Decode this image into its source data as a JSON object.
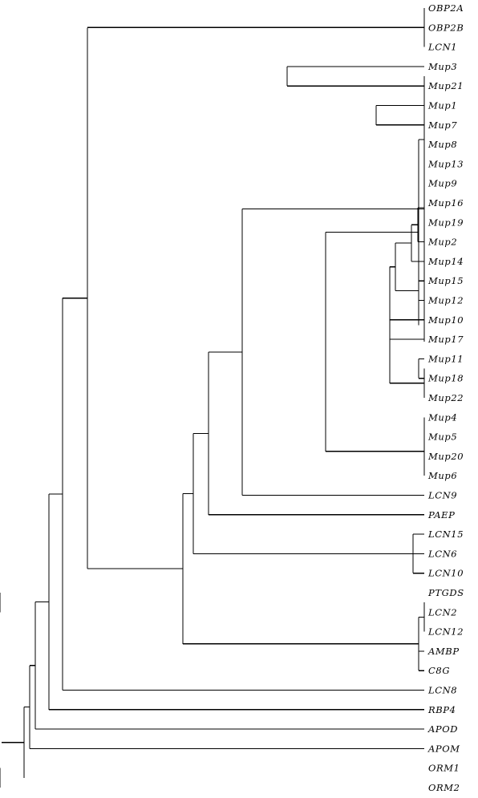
{
  "tree": {
    "name": "",
    "children": [
      {
        "name": "",
        "children": [
          {
            "name": "",
            "children": [
              {
                "name": "",
                "children": [
                  {
                    "name": "",
                    "children": [
                      {
                        "name": "",
                        "children": [
                          {
                            "name": "",
                            "children": [
                              {
                                "name": "OBP2A"
                              },
                              {
                                "name": "OBP2B"
                              },
                              {
                                "name": "LCN1"
                              }
                            ]
                          },
                          {
                            "name": "",
                            "children": [
                              {
                                "name": "",
                                "children": [
                                  {
                                    "name": "",
                                    "children": [
                                      {
                                        "name": "",
                                        "children": [
                                          {
                                            "name": "",
                                            "children": [
                                              {
                                                "name": "",
                                                "children": [
                                                  {
                                                    "name": "",
                                                    "children": [
                                                      {
                                                        "name": "Mup3"
                                                      },
                                                      {
                                                        "name": "Mup21"
                                                      }
                                                    ]
                                                  },
                                                  {
                                                    "name": "",
                                                    "children": [
                                                      {
                                                        "name": "",
                                                        "children": [
                                                          {
                                                            "name": "",
                                                            "children": [
                                                              {
                                                                "name": "",
                                                                "children": [
                                                                  {
                                                                    "name": "Mup1"
                                                                  },
                                                                  {
                                                                    "name": "Mup7"
                                                                  }
                                                                ]
                                                              },
                                                              {
                                                                "name": "Mup8"
                                                              },
                                                              {
                                                                "name": "Mup13"
                                                              }
                                                            ]
                                                          },
                                                          {
                                                            "name": "",
                                                            "children": [
                                                              {
                                                                "name": "",
                                                                "children": [
                                                                  {
                                                                    "name": "",
                                                                    "children": [
                                                                      {
                                                                        "name": "",
                                                                        "children": [
                                                                          {
                                                                            "name": "",
                                                                            "children": [
                                                                              {
                                                                                "name": "",
                                                                                "children": [
                                                                                  {
                                                                                    "name": "Mup9"
                                                                                  },
                                                                                  {
                                                                                    "name": "Mup16"
                                                                                  }
                                                                                ]
                                                                              },
                                                                              {
                                                                                "name": "Mup19"
                                                                              }
                                                                            ]
                                                                          },
                                                                          {
                                                                            "name": "Mup2"
                                                                          }
                                                                        ]
                                                                      },
                                                                      {
                                                                        "name": "Mup14"
                                                                      }
                                                                    ]
                                                                  },
                                                                  {
                                                                    "name": "",
                                                                    "children": [
                                                                      {
                                                                        "name": "Mup15"
                                                                      },
                                                                      {
                                                                        "name": "Mup12"
                                                                      }
                                                                    ]
                                                                  }
                                                                ]
                                                              },
                                                              {
                                                                "name": "Mup10"
                                                              },
                                                              {
                                                                "name": "Mup17"
                                                              },
                                                              {
                                                                "name": "",
                                                                "children": [
                                                                  {
                                                                    "name": "",
                                                                    "children": [
                                                                      {
                                                                        "name": "Mup11"
                                                                      },
                                                                      {
                                                                        "name": "Mup18"
                                                                      }
                                                                    ]
                                                                  },
                                                                  {
                                                                    "name": "Mup22"
                                                                  }
                                                                ]
                                                              }
                                                            ]
                                                          }
                                                        ]
                                                      },
                                                      {
                                                        "name": "",
                                                        "children": [
                                                          {
                                                            "name": "",
                                                            "children": [
                                                              {
                                                                "name": "Mup4"
                                                              },
                                                              {
                                                                "name": "Mup5"
                                                              }
                                                            ]
                                                          },
                                                          {
                                                            "name": "Mup20"
                                                          },
                                                          {
                                                            "name": "Mup6"
                                                          }
                                                        ]
                                                      }
                                                    ]
                                                  }
                                                ]
                                              },
                                              {
                                                "name": "LCN9"
                                              }
                                            ]
                                          },
                                          {
                                            "name": "PAEP"
                                          }
                                        ]
                                      },
                                      {
                                        "name": "",
                                        "children": [
                                          {
                                            "name": "LCN15"
                                          },
                                          {
                                            "name": "LCN6"
                                          },
                                          {
                                            "name": "LCN10"
                                          }
                                        ]
                                      }
                                    ]
                                  },
                                  {
                                    "name": "",
                                    "children": [
                                      {
                                        "name": "",
                                        "children": [
                                          {
                                            "name": "",
                                            "children": [
                                              {
                                                "name": "PTGDS"
                                              },
                                              {
                                                "name": "LCN2"
                                              }
                                            ]
                                          },
                                          {
                                            "name": "LCN12"
                                          }
                                        ]
                                      },
                                      {
                                        "name": "AMBP"
                                      },
                                      {
                                        "name": "C8G"
                                      }
                                    ]
                                  }
                                ]
                              }
                            ]
                          }
                        ]
                      },
                      {
                        "name": "LCN8"
                      }
                    ]
                  },
                  {
                    "name": "RBP4"
                  }
                ]
              },
              {
                "name": "APOD"
              }
            ]
          },
          {
            "name": "APOM"
          }
        ]
      },
      {
        "name": "",
        "children": [
          {
            "name": "ORM1"
          },
          {
            "name": "ORM2"
          }
        ]
      }
    ]
  }
}
